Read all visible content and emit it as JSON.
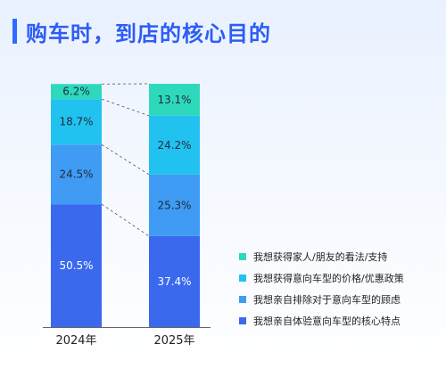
{
  "title": "购车时，到店的核心目的",
  "chart_data": {
    "type": "bar",
    "stacked": true,
    "categories": [
      "2024年",
      "2025年"
    ],
    "ylim": [
      0,
      100
    ],
    "series": [
      {
        "name": "我想亲自体验意向车型的核心特点",
        "color": "#3a69ee",
        "values": [
          50.5,
          37.4
        ],
        "labels": [
          "50.5%",
          "37.4%"
        ]
      },
      {
        "name": "我想亲自排除对于意向车型的顾虑",
        "color": "#3f9bf3",
        "values": [
          24.5,
          25.3
        ],
        "labels": [
          "24.5%",
          "25.3%"
        ]
      },
      {
        "name": "我想获得意向车型的价格/优惠政策",
        "color": "#22c2f0",
        "values": [
          18.7,
          24.2
        ],
        "labels": [
          "18.7%",
          "24.2%"
        ]
      },
      {
        "name": "我想获得家人/朋友的看法/支持",
        "color": "#2ed9bb",
        "values": [
          6.2,
          13.1
        ],
        "labels": [
          "6.2%",
          "13.1%"
        ]
      }
    ]
  },
  "legend": [
    {
      "label": "我想获得家人/朋友的看法/支持",
      "color": "#2ed9bb"
    },
    {
      "label": "我想获得意向车型的价格/优惠政策",
      "color": "#22c2f0"
    },
    {
      "label": "我想亲自排除对于意向车型的顾虑",
      "color": "#3f9bf3"
    },
    {
      "label": "我想亲自体验意向车型的核心特点",
      "color": "#3a69ee"
    }
  ]
}
